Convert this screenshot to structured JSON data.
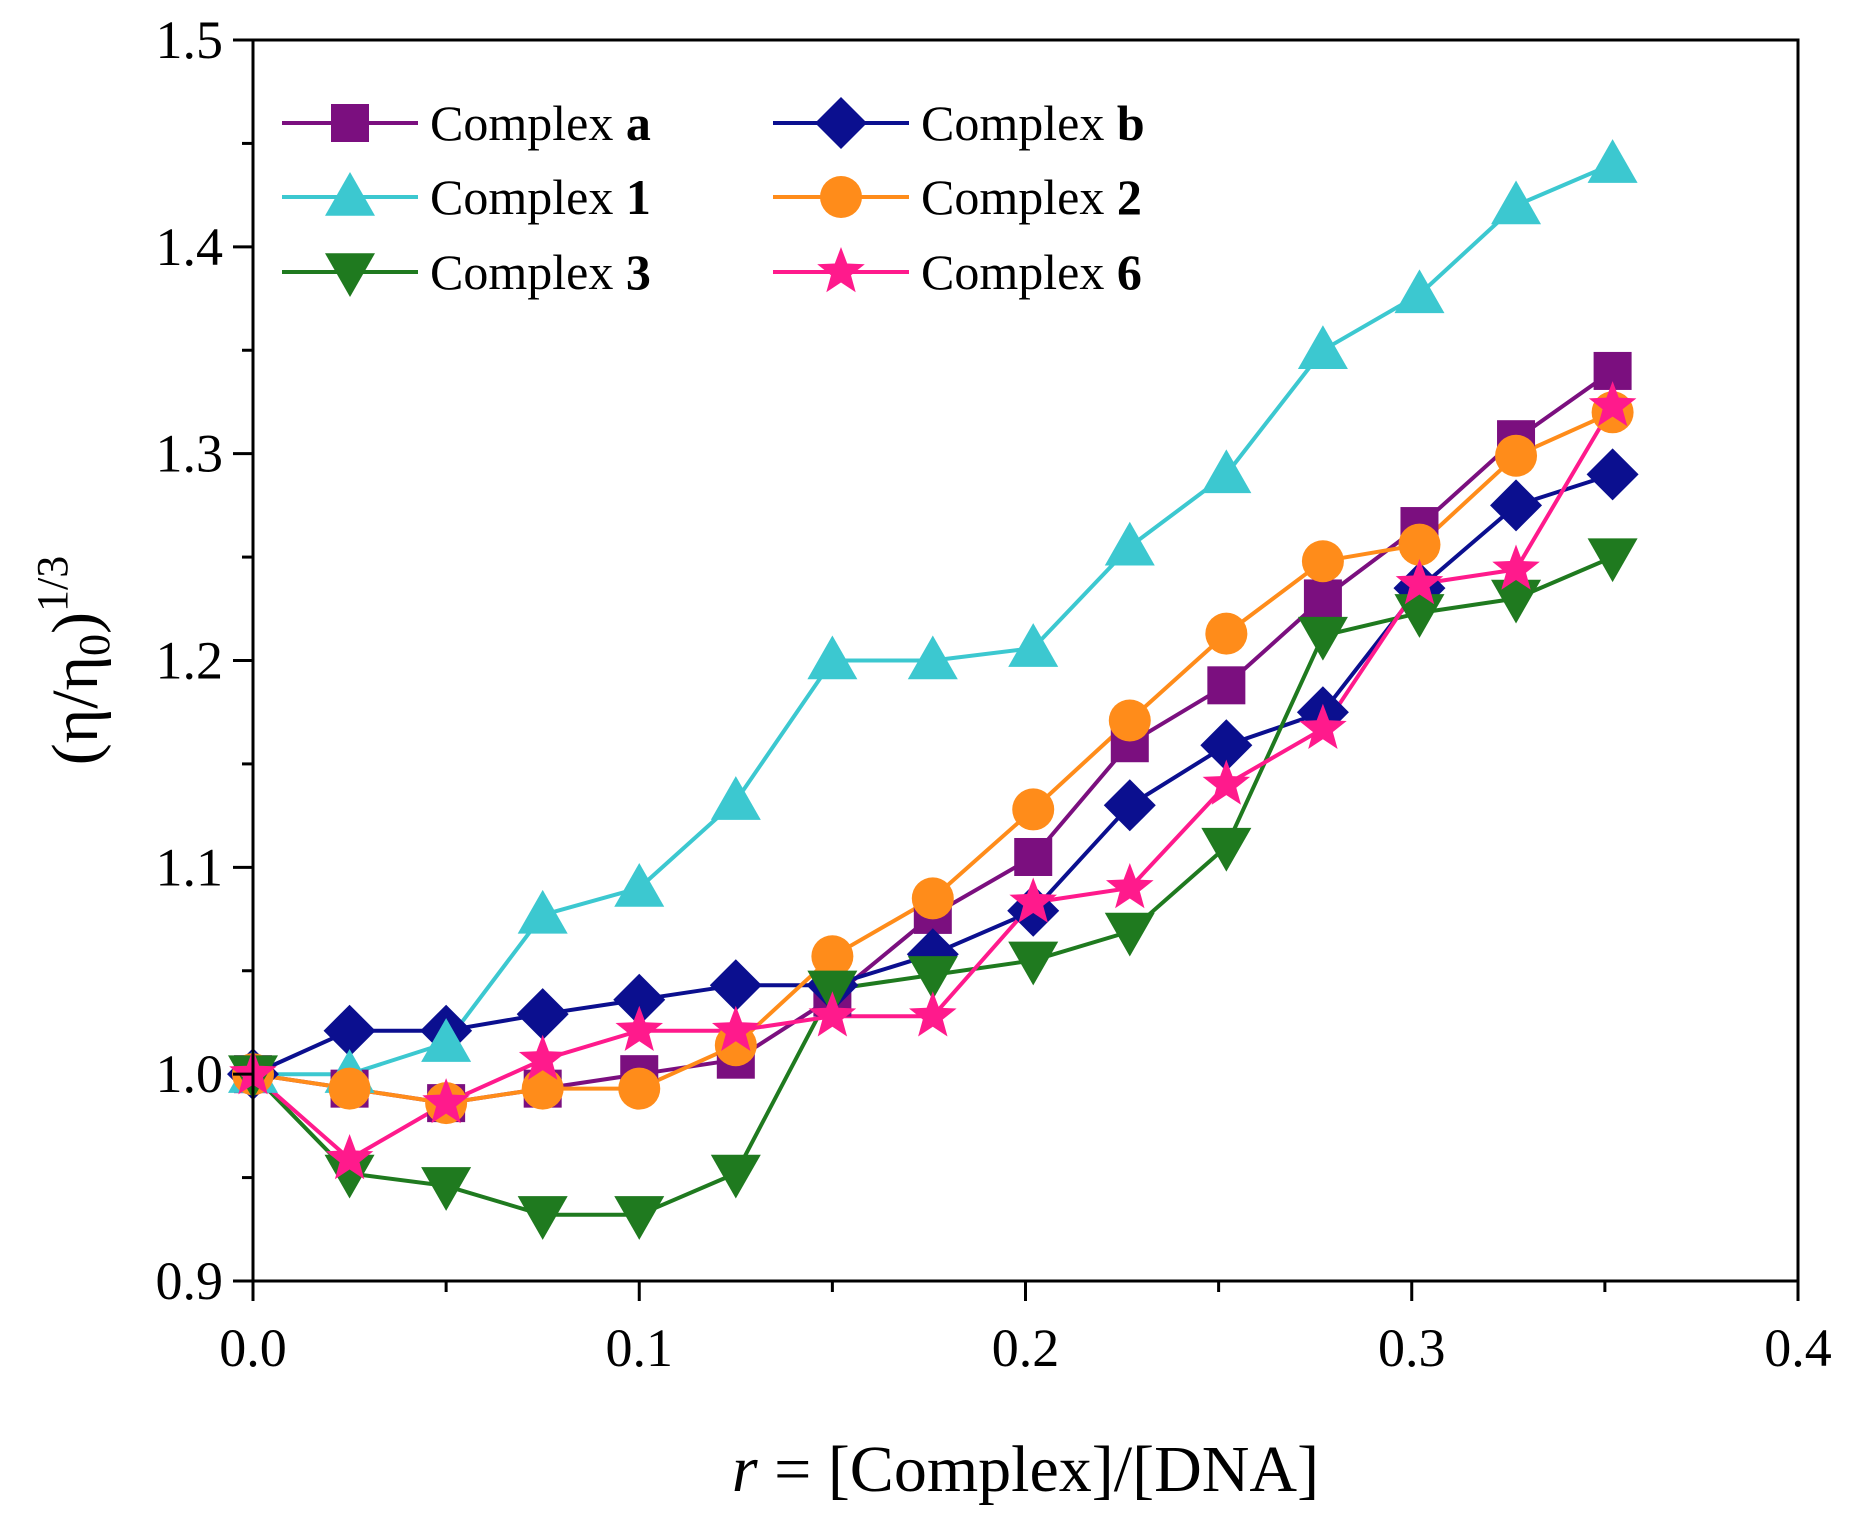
{
  "chart_data": {
    "type": "line",
    "title": "",
    "xlabel": {
      "italic": "r",
      "rest": " = [Complex]/[DNA]"
    },
    "ylabel": {
      "open": "(",
      "eta": "η",
      "slash": "/",
      "eta0": "η",
      "sub": "0",
      "close": ")",
      "sup": "1/3"
    },
    "xlim": [
      0.0,
      0.4
    ],
    "ylim": [
      0.9,
      1.5
    ],
    "xticks": [
      "0.0",
      "0.1",
      "0.2",
      "0.3",
      "0.4"
    ],
    "yticks": [
      "0.9",
      "1.0",
      "1.1",
      "1.2",
      "1.3",
      "1.4",
      "1.5"
    ],
    "legend_position": "top-left",
    "legend_prefix": "Complex ",
    "series": [
      {
        "name": "Complex a",
        "label_bold": "a",
        "color": "#7B0F7F",
        "marker": "square",
        "x": [
          0.0,
          0.025,
          0.05,
          0.075,
          0.1,
          0.125,
          0.15,
          0.176,
          0.202,
          0.227,
          0.252,
          0.277,
          0.302,
          0.327,
          0.352
        ],
        "y": [
          1.0,
          0.993,
          0.986,
          0.993,
          1.0,
          1.007,
          1.037,
          1.077,
          1.105,
          1.16,
          1.188,
          1.23,
          1.265,
          1.307,
          1.34
        ]
      },
      {
        "name": "Complex b",
        "label_bold": "b",
        "color": "#0B0F8F",
        "marker": "diamond",
        "x": [
          0.0,
          0.025,
          0.05,
          0.075,
          0.1,
          0.125,
          0.15,
          0.176,
          0.202,
          0.227,
          0.252,
          0.277,
          0.302,
          0.327,
          0.352
        ],
        "y": [
          1.0,
          1.021,
          1.021,
          1.029,
          1.036,
          1.043,
          1.043,
          1.058,
          1.079,
          1.13,
          1.159,
          1.175,
          1.235,
          1.275,
          1.29
        ]
      },
      {
        "name": "Complex 1",
        "label_bold": "1",
        "color": "#3CC8D0",
        "marker": "triangle-up",
        "x": [
          0.0,
          0.025,
          0.05,
          0.075,
          0.1,
          0.125,
          0.15,
          0.176,
          0.202,
          0.227,
          0.252,
          0.277,
          0.302,
          0.327,
          0.352
        ],
        "y": [
          1.0,
          1.0,
          1.015,
          1.077,
          1.09,
          1.132,
          1.2,
          1.2,
          1.206,
          1.255,
          1.29,
          1.35,
          1.377,
          1.42,
          1.44
        ]
      },
      {
        "name": "Complex 2",
        "label_bold": "2",
        "color": "#FF8C1A",
        "marker": "circle",
        "x": [
          0.0,
          0.025,
          0.05,
          0.075,
          0.1,
          0.125,
          0.15,
          0.176,
          0.202,
          0.227,
          0.252,
          0.277,
          0.302,
          0.327,
          0.352
        ],
        "y": [
          1.0,
          0.993,
          0.986,
          0.993,
          0.993,
          1.014,
          1.057,
          1.085,
          1.128,
          1.171,
          1.213,
          1.248,
          1.256,
          1.299,
          1.32
        ]
      },
      {
        "name": "Complex 3",
        "label_bold": "3",
        "color": "#1F7A1F",
        "marker": "triangle-down",
        "x": [
          0.0,
          0.025,
          0.05,
          0.075,
          0.1,
          0.125,
          0.15,
          0.176,
          0.202,
          0.227,
          0.252,
          0.277,
          0.302,
          0.327,
          0.352
        ],
        "y": [
          1.0,
          0.952,
          0.946,
          0.932,
          0.932,
          0.952,
          1.041,
          1.048,
          1.055,
          1.069,
          1.11,
          1.212,
          1.223,
          1.23,
          1.25
        ]
      },
      {
        "name": "Complex 6",
        "label_bold": "6",
        "color": "#FF1A8C",
        "marker": "star",
        "x": [
          0.0,
          0.025,
          0.05,
          0.075,
          0.1,
          0.125,
          0.15,
          0.176,
          0.202,
          0.227,
          0.252,
          0.277,
          0.302,
          0.327,
          0.352
        ],
        "y": [
          1.0,
          0.959,
          0.986,
          1.007,
          1.021,
          1.021,
          1.028,
          1.028,
          1.083,
          1.09,
          1.14,
          1.167,
          1.237,
          1.244,
          1.323
        ]
      }
    ]
  }
}
